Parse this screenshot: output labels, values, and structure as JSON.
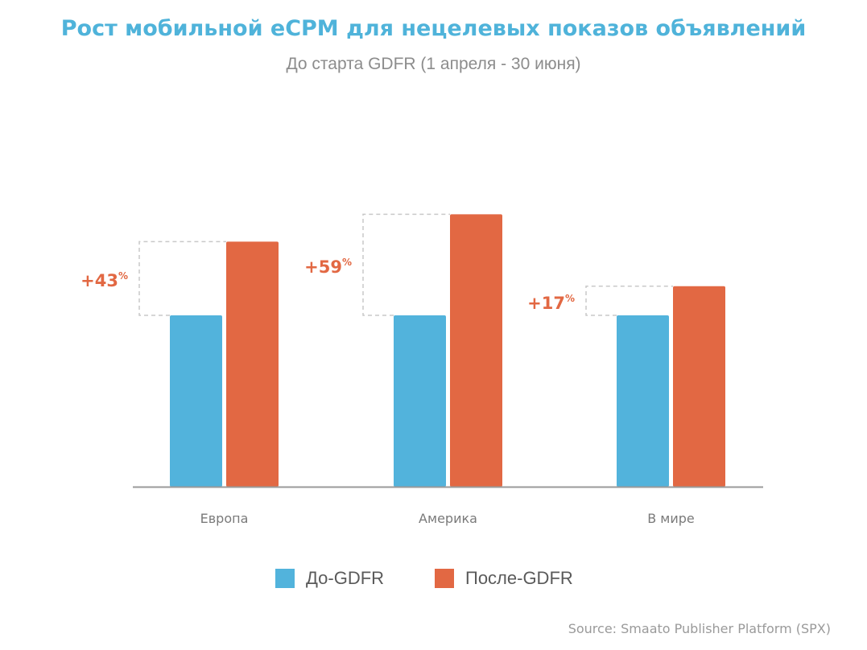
{
  "title": "Рост мобильной eCPM для нецелевых показов объявлений",
  "subtitle": "До старта GDFR (1 апреля - 30 июня)",
  "source": "Source: Smaato Publisher Platform (SPX)",
  "colors": {
    "title": "#4fb3da",
    "before": "#52b3dc",
    "after": "#e26843",
    "label": "#e26843",
    "axis": "#9a9a9a",
    "bracket": "#c9c9c9"
  },
  "legend": {
    "before_label": "До-GDFR",
    "after_label": "После-GDFR"
  },
  "chart_data": {
    "type": "bar",
    "title": "Рост мобильной eCPM для нецелевых показов объявлений",
    "subtitle": "До старта GDFR (1 апреля - 30 июня)",
    "categories": [
      "Европа",
      "Америка",
      "В мире"
    ],
    "series": [
      {
        "name": "До-GDFR",
        "values": [
          100,
          100,
          100
        ]
      },
      {
        "name": "После-GDFR",
        "values": [
          143,
          159,
          117
        ]
      }
    ],
    "annotations": [
      {
        "category": "Европа",
        "value": "+43",
        "unit": "%"
      },
      {
        "category": "Америка",
        "value": "+59",
        "unit": "%"
      },
      {
        "category": "В мире",
        "value": "+17",
        "unit": "%"
      }
    ],
    "ylim": [
      0,
      160
    ],
    "grid": false,
    "legend_position": "bottom"
  }
}
